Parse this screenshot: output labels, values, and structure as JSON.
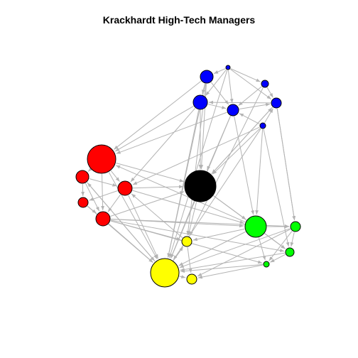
{
  "title": "Krackhardt High-Tech Managers",
  "edge_color": "#b3b3b3",
  "node_outline_color": "#000000",
  "network": {
    "groups": [
      {
        "name": "blue",
        "color": "#0000ff"
      },
      {
        "name": "red",
        "color": "#ff0000"
      },
      {
        "name": "black",
        "color": "#000000"
      },
      {
        "name": "green",
        "color": "#00ff00"
      },
      {
        "name": "yellow",
        "color": "#ffff00"
      }
    ],
    "nodes": [
      {
        "id": "b1",
        "group": "blue",
        "size": 9
      },
      {
        "id": "b2",
        "group": "blue",
        "size": 3
      },
      {
        "id": "b3",
        "group": "blue",
        "size": 5
      },
      {
        "id": "b4",
        "group": "blue",
        "size": 10
      },
      {
        "id": "b5",
        "group": "blue",
        "size": 8
      },
      {
        "id": "b6",
        "group": "blue",
        "size": 7
      },
      {
        "id": "b7",
        "group": "blue",
        "size": 4
      },
      {
        "id": "r1",
        "group": "red",
        "size": 20
      },
      {
        "id": "r2",
        "group": "red",
        "size": 9
      },
      {
        "id": "r3",
        "group": "red",
        "size": 10
      },
      {
        "id": "r4",
        "group": "red",
        "size": 7
      },
      {
        "id": "r5",
        "group": "red",
        "size": 10
      },
      {
        "id": "k1",
        "group": "black",
        "size": 22
      },
      {
        "id": "g1",
        "group": "green",
        "size": 15
      },
      {
        "id": "g2",
        "group": "green",
        "size": 7
      },
      {
        "id": "g3",
        "group": "green",
        "size": 6
      },
      {
        "id": "g4",
        "group": "green",
        "size": 4
      },
      {
        "id": "y1",
        "group": "yellow",
        "size": 20
      },
      {
        "id": "y2",
        "group": "yellow",
        "size": 7
      },
      {
        "id": "y3",
        "group": "yellow",
        "size": 7
      }
    ],
    "edges": [
      [
        "b2",
        "b1"
      ],
      [
        "b2",
        "b4"
      ],
      [
        "b2",
        "b5"
      ],
      [
        "b2",
        "b6"
      ],
      [
        "b2",
        "b3"
      ],
      [
        "b3",
        "b6"
      ],
      [
        "b3",
        "b5"
      ],
      [
        "b1",
        "b4"
      ],
      [
        "b1",
        "b5"
      ],
      [
        "b4",
        "b5"
      ],
      [
        "b5",
        "b6"
      ],
      [
        "b7",
        "b6"
      ],
      [
        "b7",
        "b5"
      ],
      [
        "b6",
        "b4"
      ],
      [
        "b1",
        "r1"
      ],
      [
        "b4",
        "r1"
      ],
      [
        "b5",
        "r1"
      ],
      [
        "b7",
        "r3"
      ],
      [
        "b4",
        "r3"
      ],
      [
        "b1",
        "k1"
      ],
      [
        "b4",
        "k1"
      ],
      [
        "b5",
        "k1"
      ],
      [
        "b7",
        "k1"
      ],
      [
        "b6",
        "k1"
      ],
      [
        "b1",
        "y1"
      ],
      [
        "b4",
        "y1"
      ],
      [
        "b5",
        "y1"
      ],
      [
        "b7",
        "y1"
      ],
      [
        "b2",
        "y1"
      ],
      [
        "b3",
        "y2"
      ],
      [
        "b7",
        "g1"
      ],
      [
        "b6",
        "g2"
      ],
      [
        "b5",
        "g1"
      ],
      [
        "b1",
        "y2"
      ],
      [
        "r1",
        "r2"
      ],
      [
        "r1",
        "r3"
      ],
      [
        "r2",
        "r4"
      ],
      [
        "r2",
        "r5"
      ],
      [
        "r3",
        "r5"
      ],
      [
        "r4",
        "r5"
      ],
      [
        "r2",
        "r3"
      ],
      [
        "r1",
        "r5"
      ],
      [
        "r3",
        "r4"
      ],
      [
        "r1",
        "k1"
      ],
      [
        "r3",
        "k1"
      ],
      [
        "r5",
        "k1"
      ],
      [
        "r5",
        "g1"
      ],
      [
        "r3",
        "g1"
      ],
      [
        "r5",
        "g2"
      ],
      [
        "r5",
        "g3"
      ],
      [
        "r5",
        "g4"
      ],
      [
        "r5",
        "y1"
      ],
      [
        "r3",
        "y1"
      ],
      [
        "r1",
        "y1"
      ],
      [
        "r4",
        "y1"
      ],
      [
        "r2",
        "y1"
      ],
      [
        "r5",
        "y2"
      ],
      [
        "k1",
        "g1"
      ],
      [
        "k1",
        "y1"
      ],
      [
        "k1",
        "y2"
      ],
      [
        "k1",
        "g3"
      ],
      [
        "k1",
        "b6"
      ],
      [
        "g1",
        "g2"
      ],
      [
        "g1",
        "g3"
      ],
      [
        "g1",
        "g4"
      ],
      [
        "g2",
        "g3"
      ],
      [
        "g3",
        "g4"
      ],
      [
        "g2",
        "g4"
      ],
      [
        "g1",
        "y1"
      ],
      [
        "g1",
        "y2"
      ],
      [
        "g3",
        "y1"
      ],
      [
        "g4",
        "y1"
      ],
      [
        "g2",
        "y1"
      ],
      [
        "g4",
        "y3"
      ],
      [
        "g2",
        "y3"
      ],
      [
        "y1",
        "y2"
      ],
      [
        "y1",
        "y3"
      ],
      [
        "y2",
        "y3"
      ],
      [
        "y1",
        "r2"
      ],
      [
        "y2",
        "r3"
      ],
      [
        "g1",
        "r1"
      ],
      [
        "b6",
        "g2"
      ],
      [
        "b7",
        "g3"
      ]
    ]
  }
}
